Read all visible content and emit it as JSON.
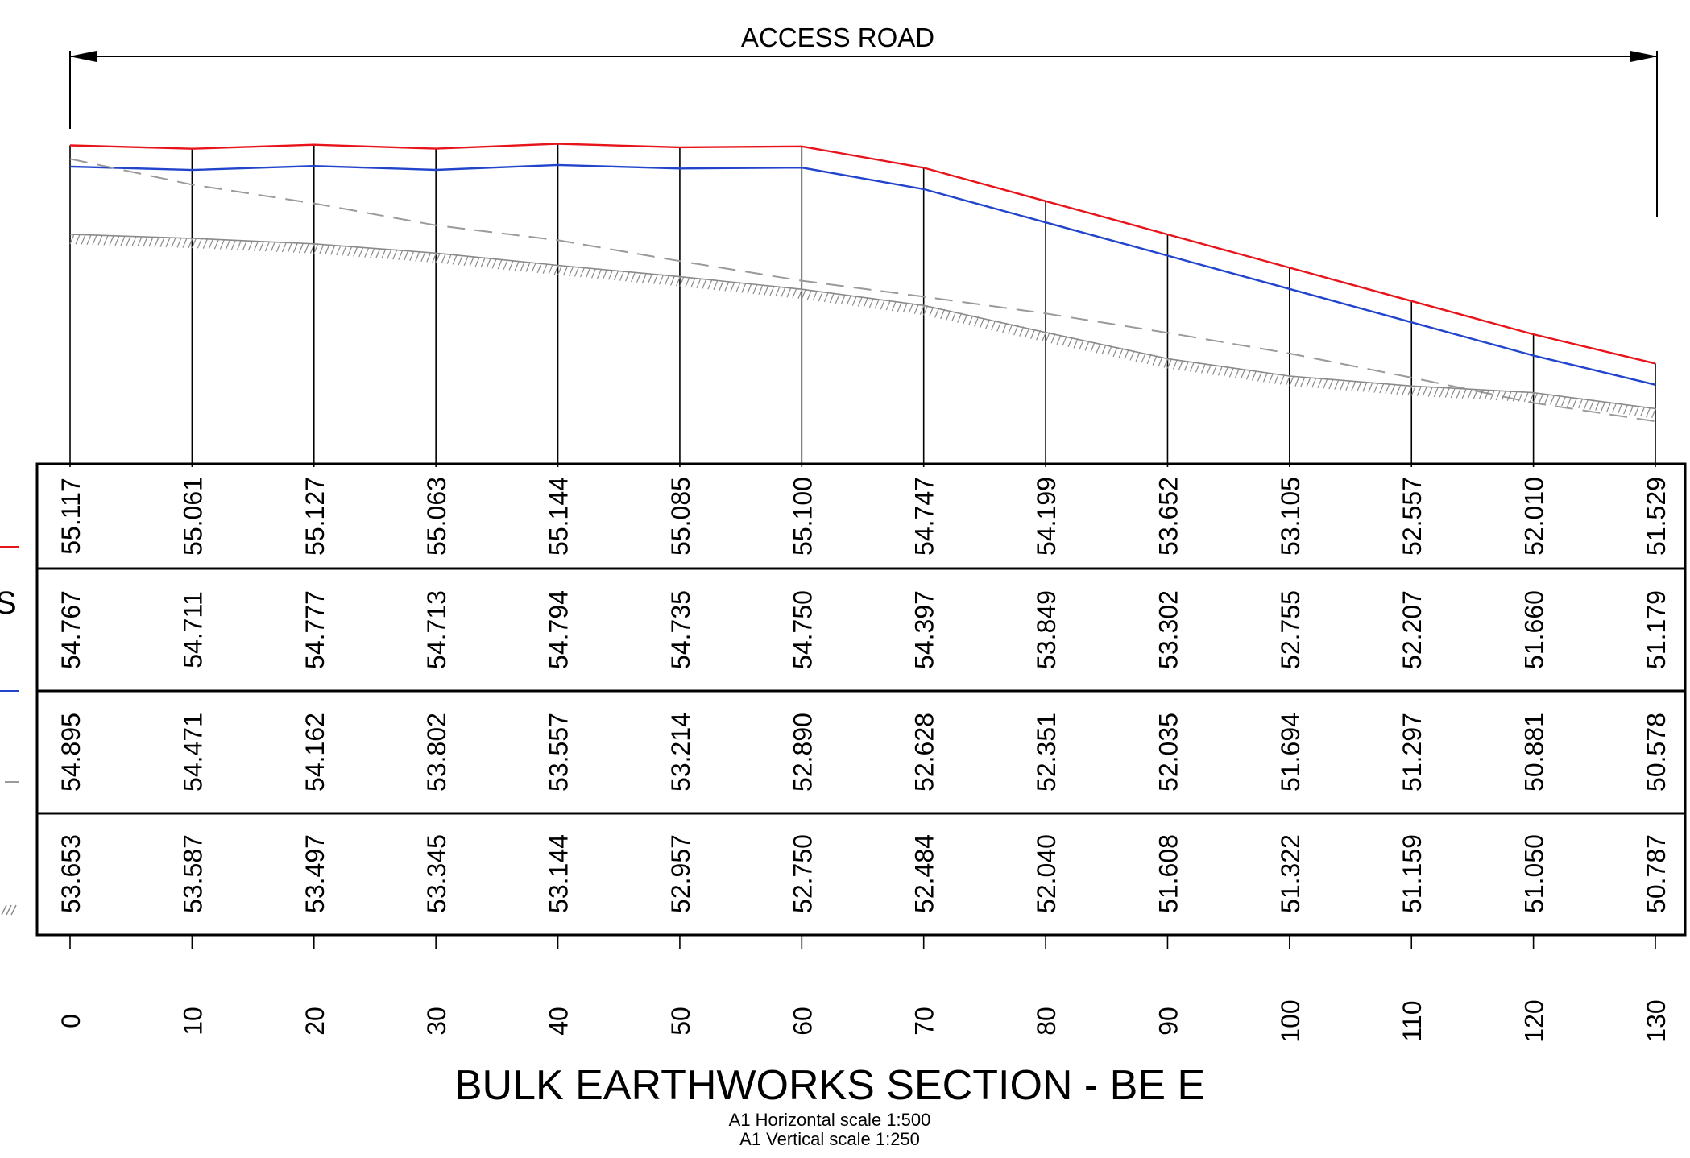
{
  "header": {
    "extent_label": "ACCESS ROAD"
  },
  "footer": {
    "title": "BULK EARTHWORKS SECTION - BE E",
    "horizontal_scale": "A1 Horizontal scale 1:500",
    "vertical_scale": "A1 Vertical scale 1:250"
  },
  "legend_fragment": "S",
  "colors": {
    "finished_level": "#e8141b",
    "subgrade_level": "#2244cc",
    "existing_surface": "#9a9a9a",
    "hatched_level": "#8a8a8a",
    "linework": "#000000"
  },
  "chart_data": {
    "type": "table",
    "chainages": [
      0,
      10,
      20,
      30,
      40,
      50,
      60,
      70,
      80,
      90,
      100,
      110,
      120,
      130
    ],
    "rows": [
      {
        "legend": "red solid line",
        "values": [
          "55.117",
          "55.061",
          "55.127",
          "55.063",
          "55.144",
          "55.085",
          "55.100",
          "54.747",
          "54.199",
          "53.652",
          "53.105",
          "52.557",
          "52.010",
          "51.529"
        ]
      },
      {
        "legend": "blue solid line",
        "values": [
          "54.767",
          "54.711",
          "54.777",
          "54.713",
          "54.794",
          "54.735",
          "54.750",
          "54.397",
          "53.849",
          "53.302",
          "52.755",
          "52.207",
          "51.660",
          "51.179"
        ]
      },
      {
        "legend": "grey dashed line",
        "values": [
          "54.895",
          "54.471",
          "54.162",
          "53.802",
          "53.557",
          "53.214",
          "52.890",
          "52.628",
          "52.351",
          "52.035",
          "51.694",
          "51.297",
          "50.881",
          "50.578"
        ]
      },
      {
        "legend": "grey hatched line",
        "values": [
          "53.653",
          "53.587",
          "53.497",
          "53.345",
          "53.144",
          "52.957",
          "52.750",
          "52.484",
          "52.040",
          "51.608",
          "51.322",
          "51.159",
          "51.050",
          "50.787"
        ]
      }
    ]
  }
}
